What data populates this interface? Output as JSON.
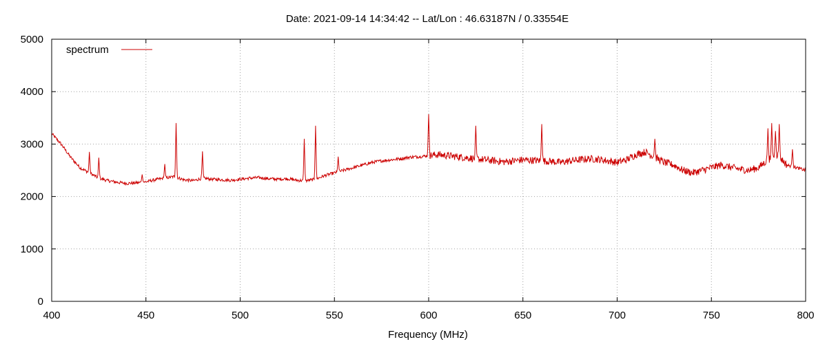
{
  "chart_data": {
    "type": "line",
    "title": "Date: 2021-09-14 14:34:42  --  Lat/Lon : 46.63187N / 0.33554E",
    "xlabel": "Frequency (MHz)",
    "ylabel": "",
    "xlim": [
      400,
      800
    ],
    "ylim": [
      0,
      5000
    ],
    "x_ticks": [
      400,
      450,
      500,
      550,
      600,
      650,
      700,
      750,
      800
    ],
    "y_ticks": [
      0,
      1000,
      2000,
      3000,
      4000,
      5000
    ],
    "grid": true,
    "legend_position": "top-left",
    "series": [
      {
        "name": "spectrum",
        "color": "#cc0000",
        "x": [
          400,
          405,
          410,
          415,
          420,
          425,
          430,
          435,
          440,
          445,
          450,
          455,
          460,
          465,
          470,
          475,
          480,
          485,
          490,
          495,
          500,
          505,
          510,
          515,
          520,
          525,
          530,
          535,
          540,
          545,
          550,
          555,
          560,
          565,
          570,
          575,
          580,
          585,
          590,
          595,
          600,
          605,
          610,
          615,
          620,
          625,
          630,
          635,
          640,
          645,
          650,
          655,
          660,
          665,
          670,
          675,
          680,
          685,
          690,
          695,
          700,
          705,
          710,
          715,
          720,
          725,
          730,
          735,
          740,
          745,
          750,
          755,
          760,
          765,
          770,
          775,
          780,
          785,
          790,
          795,
          800
        ],
        "values": [
          3200,
          3000,
          2750,
          2550,
          2450,
          2350,
          2300,
          2270,
          2250,
          2260,
          2280,
          2320,
          2350,
          2380,
          2320,
          2300,
          2350,
          2330,
          2320,
          2310,
          2330,
          2350,
          2360,
          2340,
          2330,
          2340,
          2310,
          2300,
          2330,
          2400,
          2450,
          2500,
          2550,
          2600,
          2650,
          2680,
          2700,
          2720,
          2750,
          2760,
          2780,
          2800,
          2780,
          2760,
          2740,
          2720,
          2700,
          2680,
          2660,
          2680,
          2700,
          2690,
          2680,
          2670,
          2650,
          2680,
          2700,
          2720,
          2710,
          2680,
          2650,
          2700,
          2800,
          2850,
          2750,
          2650,
          2600,
          2500,
          2450,
          2500,
          2550,
          2600,
          2560,
          2520,
          2500,
          2550,
          2700,
          2800,
          2600,
          2550,
          2500
        ],
        "spikes": [
          {
            "x": 420,
            "y": 2850
          },
          {
            "x": 425,
            "y": 2740
          },
          {
            "x": 448,
            "y": 2420
          },
          {
            "x": 460,
            "y": 2620
          },
          {
            "x": 466,
            "y": 3400
          },
          {
            "x": 480,
            "y": 2860
          },
          {
            "x": 534,
            "y": 3100
          },
          {
            "x": 540,
            "y": 3350
          },
          {
            "x": 552,
            "y": 2760
          },
          {
            "x": 600,
            "y": 3570
          },
          {
            "x": 625,
            "y": 3350
          },
          {
            "x": 660,
            "y": 3380
          },
          {
            "x": 720,
            "y": 3100
          },
          {
            "x": 780,
            "y": 3300
          },
          {
            "x": 782,
            "y": 3400
          },
          {
            "x": 784,
            "y": 3250
          },
          {
            "x": 786,
            "y": 3380
          },
          {
            "x": 793,
            "y": 2900
          }
        ]
      }
    ]
  }
}
